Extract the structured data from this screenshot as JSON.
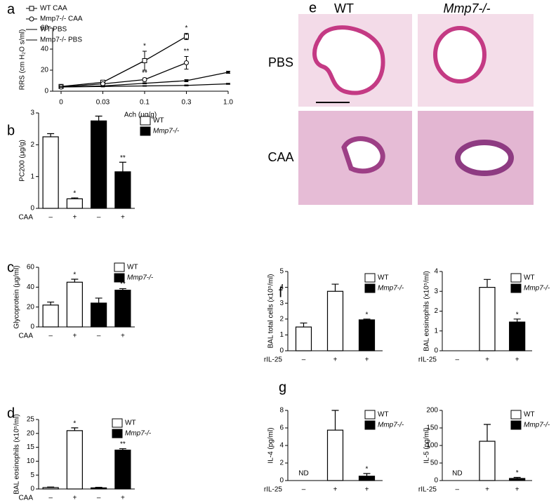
{
  "chart_data": [
    {
      "type": "line",
      "panel": "a",
      "categories": [
        "0",
        "0.03",
        "0.1",
        "0.3",
        "1.0"
      ],
      "xlabel": "Ach (μg/g)",
      "ylabel": "RRS (cm H₂O s/ml)",
      "ylim": [
        0,
        60
      ],
      "yticks": [
        0,
        20,
        40,
        60
      ],
      "series": [
        {
          "name": "WT CAA",
          "color": "#000000",
          "marker": "square",
          "values": [
            4.5,
            8.5,
            29,
            52,
            null
          ],
          "errors": [
            0.5,
            1,
            9,
            3,
            null
          ],
          "annotations": [
            null,
            null,
            "*",
            "*",
            null
          ]
        },
        {
          "name": "Mmp7-/- CAA",
          "color": "#000000",
          "marker": "circle",
          "values": [
            4,
            7,
            11,
            27,
            null
          ],
          "errors": [
            0.5,
            0.5,
            1.5,
            6,
            null
          ],
          "annotations": [
            null,
            null,
            "**",
            "**",
            null
          ]
        },
        {
          "name": "WT PBS",
          "color": "#000000",
          "marker": "dash",
          "values": [
            4,
            5,
            7.5,
            10,
            18
          ],
          "errors": [
            0.3,
            0.3,
            0.5,
            1,
            1
          ]
        },
        {
          "name": "Mmp7-/- PBS",
          "color": "#000000",
          "marker": "dash",
          "values": [
            4,
            4.5,
            5,
            5.5,
            7
          ],
          "errors": [
            0.3,
            0.3,
            0.3,
            0.5,
            0.5
          ]
        }
      ]
    },
    {
      "type": "bar",
      "panel": "b",
      "xlabel": "CAA",
      "categories": [
        "–",
        "+",
        "–",
        "+"
      ],
      "ylabel": "PC200 (μg/g)",
      "ylim": [
        0,
        3
      ],
      "yticks": [
        0,
        1,
        2,
        3
      ],
      "values": [
        2.25,
        0.3,
        2.75,
        1.15
      ],
      "errors": [
        0.1,
        0.03,
        0.15,
        0.3
      ],
      "colors": [
        "#ffffff",
        "#ffffff",
        "#000000",
        "#000000"
      ],
      "annotations": [
        null,
        "*",
        null,
        "**"
      ],
      "legend": [
        {
          "name": "WT",
          "color": "#ffffff"
        },
        {
          "name": "Mmp7-/-",
          "color": "#000000"
        }
      ]
    },
    {
      "type": "bar",
      "panel": "c",
      "xlabel": "CAA",
      "categories": [
        "–",
        "+",
        "–",
        "+"
      ],
      "ylabel": "Glycoprotein (μg/ml)",
      "ylim": [
        0,
        60
      ],
      "yticks": [
        0,
        20,
        40,
        60
      ],
      "values": [
        22,
        45,
        24,
        37
      ],
      "errors": [
        3,
        3,
        5,
        1.5
      ],
      "colors": [
        "#ffffff",
        "#ffffff",
        "#000000",
        "#000000"
      ],
      "annotations": [
        null,
        "*",
        null,
        "**"
      ],
      "legend": [
        {
          "name": "WT",
          "color": "#ffffff"
        },
        {
          "name": "Mmp7-/-",
          "color": "#000000"
        }
      ]
    },
    {
      "type": "bar",
      "panel": "d",
      "xlabel": "CAA",
      "categories": [
        "–",
        "+",
        "–",
        "+"
      ],
      "ylabel": "BAL eosinophils (x10⁵/ml)",
      "ylim": [
        0,
        25
      ],
      "yticks": [
        0,
        5,
        10,
        15,
        20,
        25
      ],
      "values": [
        0.5,
        21,
        0.4,
        14
      ],
      "errors": [
        0.2,
        1,
        0.2,
        0.5
      ],
      "colors": [
        "#ffffff",
        "#ffffff",
        "#000000",
        "#000000"
      ],
      "annotations": [
        null,
        "*",
        null,
        "**"
      ],
      "legend": [
        {
          "name": "WT",
          "color": "#ffffff"
        },
        {
          "name": "Mmp7-/-",
          "color": "#000000"
        }
      ]
    },
    {
      "type": "bar",
      "panel": "f",
      "xlabel": "rIL-25",
      "categories": [
        "–",
        "+",
        "+"
      ],
      "ylabel": "BAL total cells (x10⁵/ml)",
      "ylim": [
        0,
        5
      ],
      "yticks": [
        0,
        1,
        2,
        3,
        4,
        5
      ],
      "values": [
        1.5,
        3.75,
        1.95
      ],
      "errors": [
        0.25,
        0.45,
        0.05
      ],
      "colors": [
        "#ffffff",
        "#ffffff",
        "#000000"
      ],
      "annotations": [
        null,
        null,
        "*"
      ],
      "legend": [
        {
          "name": "WT",
          "color": "#ffffff"
        },
        {
          "name": "Mmp7-/-",
          "color": "#000000"
        }
      ]
    },
    {
      "type": "bar",
      "xlabel": "rIL-25",
      "categories": [
        "–",
        "+",
        "+"
      ],
      "ylabel": "BAL eosinophils (x10⁵/ml)",
      "ylim": [
        0,
        4
      ],
      "yticks": [
        0,
        1,
        2,
        3,
        4
      ],
      "values": [
        null,
        3.2,
        1.45
      ],
      "errors": [
        null,
        0.4,
        0.15
      ],
      "colors": [
        "#ffffff",
        "#ffffff",
        "#000000"
      ],
      "annotations": [
        null,
        null,
        "*"
      ],
      "legend": [
        {
          "name": "WT",
          "color": "#ffffff"
        },
        {
          "name": "Mmp7-/-",
          "color": "#000000"
        }
      ]
    },
    {
      "type": "bar",
      "panel": "g",
      "xlabel": "rIL-25",
      "categories": [
        "–",
        "+",
        "+"
      ],
      "ylabel": "IL-4 (pg/ml)",
      "ylim": [
        0,
        8
      ],
      "yticks": [
        0,
        2,
        4,
        6,
        8
      ],
      "values": [
        null,
        5.75,
        0.5
      ],
      "errors": [
        null,
        2.25,
        0.3
      ],
      "colors": [
        "#ffffff",
        "#ffffff",
        "#000000"
      ],
      "annotations": [
        "ND",
        null,
        "*"
      ],
      "legend": [
        {
          "name": "WT",
          "color": "#ffffff"
        },
        {
          "name": "Mmp7-/-",
          "color": "#000000"
        }
      ]
    },
    {
      "type": "bar",
      "xlabel": "rIL-25",
      "categories": [
        "–",
        "+",
        "+"
      ],
      "ylabel": "IL-5 (pg/ml)",
      "ylim": [
        0,
        200
      ],
      "yticks": [
        0,
        50,
        100,
        150,
        200
      ],
      "values": [
        null,
        112,
        6
      ],
      "errors": [
        null,
        48,
        3
      ],
      "colors": [
        "#ffffff",
        "#ffffff",
        "#000000"
      ],
      "annotations": [
        "ND",
        null,
        "*"
      ],
      "legend": [
        {
          "name": "WT",
          "color": "#ffffff"
        },
        {
          "name": "Mmp7-/-",
          "color": "#000000"
        }
      ]
    }
  ],
  "panel_e": {
    "panel": "e",
    "columns": [
      "WT",
      "Mmp7-/-"
    ],
    "rows": [
      "PBS",
      "CAA"
    ]
  }
}
